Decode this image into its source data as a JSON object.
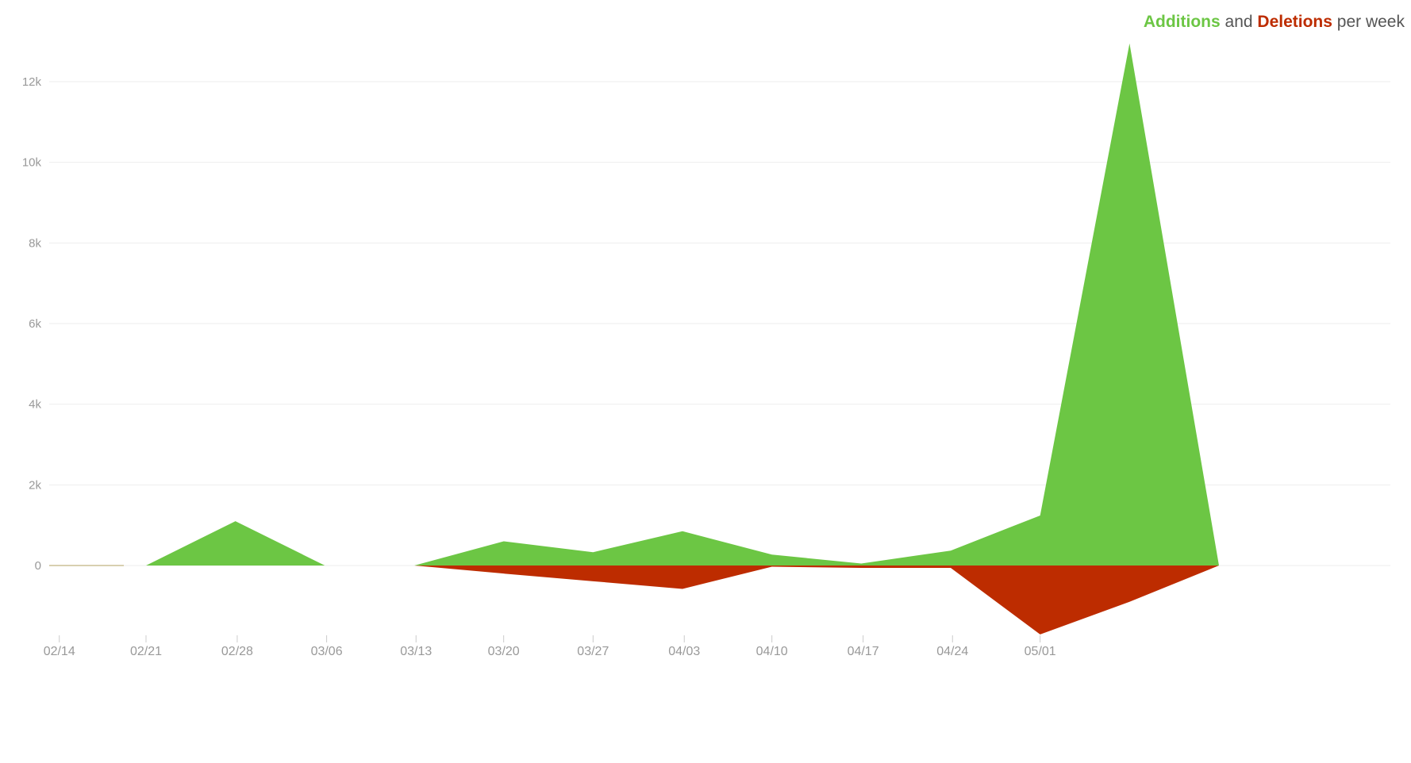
{
  "chart_title": {
    "additions_word": "Additions",
    "connector": "and",
    "deletions_word": "Deletions",
    "suffix": "per week"
  },
  "colors": {
    "additions": "#6cc644",
    "deletions": "#bd2c00",
    "gridline": "#eeeeee",
    "axis_text": "#999999"
  },
  "chart_data": {
    "type": "area",
    "title": "Additions and Deletions per week",
    "x_tick_labels": [
      "02/14",
      "02/21",
      "02/28",
      "03/06",
      "03/13",
      "03/20",
      "03/27",
      "04/03",
      "04/10",
      "04/17",
      "04/24",
      "05/01"
    ],
    "y_tick_labels": [
      "0",
      "2k",
      "4k",
      "6k",
      "8k",
      "10k",
      "12k"
    ],
    "y_ticks": [
      0,
      2000,
      4000,
      6000,
      8000,
      10000,
      12000
    ],
    "ylim": [
      -1700,
      13000
    ],
    "x_positions": [
      0,
      1,
      2,
      3,
      4,
      5,
      6,
      7,
      8,
      9,
      10,
      11,
      12
    ],
    "x_range": [
      0,
      12
    ],
    "tick_x_positions": [
      -0.97,
      0.0,
      1.02,
      2.02,
      3.02,
      4.0,
      5.0,
      6.02,
      7.0,
      8.02,
      9.02,
      10.0
    ],
    "grid": "horizontal",
    "legend": "top-right",
    "series": [
      {
        "name": "Additions",
        "values": [
          0,
          1100,
          0,
          0,
          600,
          330,
          850,
          270,
          50,
          370,
          1240,
          12950
        ]
      },
      {
        "name": "Deletions",
        "values": [
          0,
          0,
          0,
          0,
          -200,
          -390,
          -580,
          -30,
          -60,
          -60,
          -1710,
          -900
        ]
      }
    ],
    "pre_series_values": [
      0
    ]
  }
}
